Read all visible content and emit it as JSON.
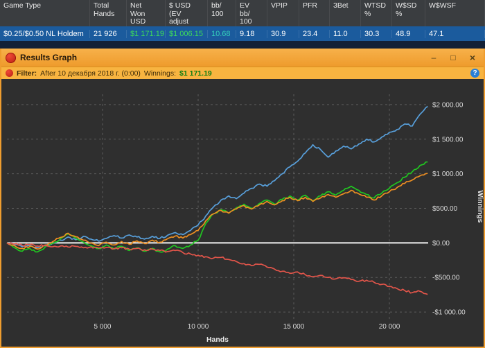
{
  "table": {
    "columns": [
      {
        "key": "game_type",
        "label": "Game Type"
      },
      {
        "key": "total_hands",
        "label": "Total\nHands"
      },
      {
        "key": "net_won_usd",
        "label": "Net\nWon\nUSD"
      },
      {
        "key": "usd_ev_adjust",
        "label": "$ USD\n(EV\nadjust"
      },
      {
        "key": "bb_100",
        "label": "bb/\n100"
      },
      {
        "key": "ev_bb_100",
        "label": "EV\nbb/\n100"
      },
      {
        "key": "vpip",
        "label": "VPIP"
      },
      {
        "key": "pfr",
        "label": "PFR"
      },
      {
        "key": "threebet",
        "label": "3Bet"
      },
      {
        "key": "wtsd_pct",
        "label": "WTSD\n%"
      },
      {
        "key": "wsd_pct",
        "label": "W$SD\n%"
      },
      {
        "key": "wwsf",
        "label": "W$WSF"
      }
    ],
    "row": {
      "cells": [
        {
          "text": "$0.25/$0.50 NL Holdem",
          "color": "#ffffff"
        },
        {
          "text": "21 926",
          "color": "#ffffff"
        },
        {
          "text": "$1 171.19",
          "color": "#3edc5a"
        },
        {
          "text": "$1 006.15",
          "color": "#3edc5a"
        },
        {
          "text": "10.68",
          "color": "#35d0bb"
        },
        {
          "text": "9.18",
          "color": "#ffffff"
        },
        {
          "text": "30.9",
          "color": "#ffffff"
        },
        {
          "text": "23.4",
          "color": "#ffffff"
        },
        {
          "text": "11.0",
          "color": "#ffffff"
        },
        {
          "text": "30.3",
          "color": "#ffffff"
        },
        {
          "text": "48.9",
          "color": "#ffffff"
        },
        {
          "text": "47.1",
          "color": "#ffffff"
        }
      ]
    }
  },
  "window": {
    "title": "Results Graph"
  },
  "icons": {
    "minimize": "–",
    "maximize": "□",
    "close": "×",
    "help": "?"
  },
  "filter_bar": {
    "filter_label": "Filter:",
    "filter_value": "After 10 декабря 2018 г. (0:00)",
    "winnings_label": "Winnings:",
    "winnings_value": "$1 171.19"
  },
  "chart_data": {
    "type": "line",
    "xlabel": "Hands",
    "ylabel": "Winnings",
    "xlim": [
      0,
      22500
    ],
    "ylim": [
      -1100,
      2150
    ],
    "x_ticks": [
      5000,
      10000,
      15000,
      20000
    ],
    "x_tick_labels": [
      "5 000",
      "10 000",
      "15 000",
      "20 000"
    ],
    "y_ticks": [
      2000,
      1500,
      1000,
      500,
      0,
      -500,
      -1000
    ],
    "y_tick_labels": [
      "$2 000.00",
      "$1 500.00",
      "$1 000.00",
      "$500.00",
      "$0.00",
      "-$500.00",
      "-$1 000.00"
    ],
    "grid": "dashed",
    "zero_line": 0,
    "legend": "none",
    "x_start": 0,
    "x_step": 400,
    "series": [
      {
        "name": "blue",
        "color": "#58a0dc",
        "values": [
          0,
          -25,
          -55,
          -35,
          -70,
          -40,
          -5,
          40,
          85,
          45,
          95,
          55,
          25,
          65,
          105,
          70,
          115,
          85,
          55,
          95,
          65,
          110,
          150,
          120,
          180,
          260,
          390,
          520,
          620,
          680,
          640,
          720,
          790,
          850,
          820,
          900,
          1000,
          1100,
          1180,
          1300,
          1420,
          1350,
          1240,
          1330,
          1400,
          1360,
          1430,
          1500,
          1460,
          1530,
          1600,
          1640,
          1720,
          1690,
          1860,
          1975
        ]
      },
      {
        "name": "green",
        "color": "#21c621",
        "values": [
          0,
          -70,
          -120,
          -80,
          -130,
          -60,
          -10,
          60,
          130,
          70,
          10,
          -40,
          -80,
          -30,
          -90,
          -50,
          -110,
          -70,
          -120,
          -80,
          -130,
          -90,
          -40,
          -80,
          -30,
          40,
          280,
          420,
          480,
          430,
          510,
          560,
          500,
          570,
          620,
          560,
          630,
          680,
          620,
          690,
          610,
          680,
          740,
          690,
          760,
          820,
          760,
          700,
          650,
          720,
          790,
          870,
          950,
          1030,
          1120,
          1171
        ]
      },
      {
        "name": "orange",
        "color": "#ee8f22",
        "values": [
          0,
          -40,
          -80,
          -50,
          -90,
          -30,
          20,
          80,
          140,
          90,
          40,
          0,
          -40,
          10,
          -30,
          20,
          -20,
          30,
          -10,
          40,
          10,
          60,
          100,
          70,
          120,
          180,
          320,
          420,
          470,
          430,
          490,
          540,
          490,
          550,
          600,
          550,
          610,
          660,
          610,
          660,
          600,
          650,
          700,
          660,
          710,
          760,
          710,
          660,
          620,
          680,
          740,
          800,
          860,
          910,
          970,
          1006
        ]
      },
      {
        "name": "red",
        "color": "#e2554a",
        "values": [
          0,
          -15,
          -35,
          -25,
          -45,
          -35,
          -55,
          -45,
          -60,
          -50,
          -70,
          -55,
          -75,
          -65,
          -85,
          -70,
          -90,
          -80,
          -100,
          -90,
          -110,
          -125,
          -110,
          -140,
          -160,
          -180,
          -200,
          -220,
          -210,
          -240,
          -270,
          -300,
          -330,
          -310,
          -350,
          -380,
          -410,
          -440,
          -420,
          -460,
          -490,
          -470,
          -500,
          -520,
          -505,
          -530,
          -555,
          -540,
          -570,
          -600,
          -630,
          -660,
          -690,
          -720,
          -700,
          -745
        ]
      }
    ]
  }
}
